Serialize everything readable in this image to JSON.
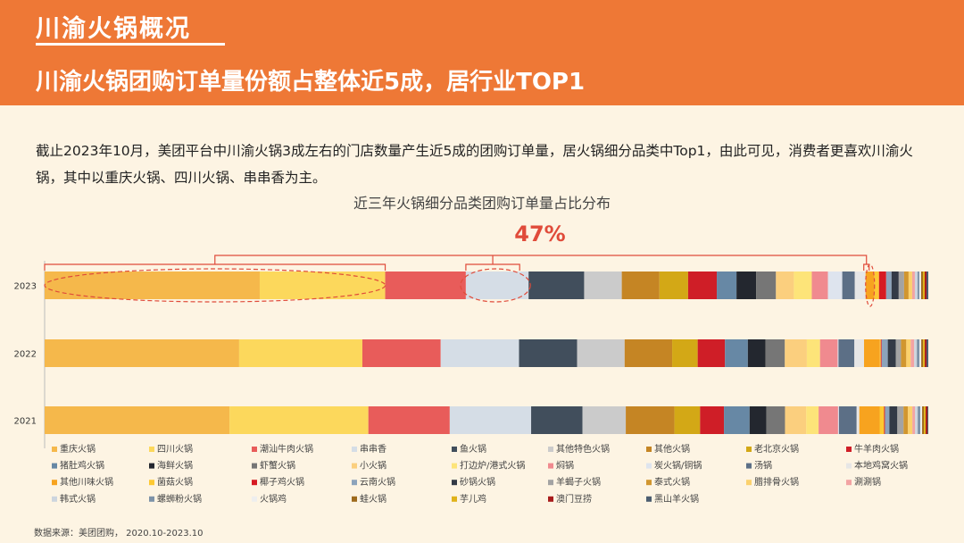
{
  "header": {
    "title": "川渝火锅概况",
    "subtitle": "川渝火锅团购订单量份额占整体近5成，居行业TOP1"
  },
  "description": "截止2023年10月，美团平台中川渝火锅3成左右的门店数量产生近5成的团购订单量，居火锅细分品类中Top1，由此可见，消费者更喜欢川渝火锅，其中以重庆火锅、四川火锅、串串香为主。",
  "source": "数据来源：美团团购， 2020.10-2023.10",
  "chart_data": {
    "type": "bar",
    "orientation": "horizontal",
    "stacked": "100%",
    "title": "近三年火锅细分品类团购订单量占比分布",
    "annotation": "47%",
    "categories": [
      "2023",
      "2022",
      "2021"
    ],
    "series": [
      {
        "name": "重庆火锅",
        "color": "#f5b84b",
        "values": [
          24.0,
          22.1,
          20.9
        ]
      },
      {
        "name": "四川火锅",
        "color": "#fcd85c",
        "values": [
          14.0,
          14.0,
          15.7
        ]
      },
      {
        "name": "潮汕牛肉火锅",
        "color": "#e85c5a",
        "values": [
          9.0,
          8.9,
          9.2
        ]
      },
      {
        "name": "串串香",
        "color": "#d5dde6",
        "values": [
          7.0,
          8.9,
          9.2
        ]
      },
      {
        "name": "鱼火锅",
        "color": "#414e5c",
        "values": [
          6.2,
          6.6,
          5.8
        ]
      },
      {
        "name": "其他特色火锅",
        "color": "#cbcbcb",
        "values": [
          4.2,
          5.4,
          4.9
        ]
      },
      {
        "name": "其他火锅",
        "color": "#c58524",
        "values": [
          4.2,
          5.4,
          5.5
        ]
      },
      {
        "name": "老北京火锅",
        "color": "#d3a816",
        "values": [
          3.2,
          2.9,
          2.9
        ]
      },
      {
        "name": "牛羊肉火锅",
        "color": "#cf1e27",
        "values": [
          3.2,
          3.1,
          2.7
        ]
      },
      {
        "name": "猪肚鸡火锅",
        "color": "#6788a5",
        "values": [
          2.2,
          2.6,
          2.9
        ]
      },
      {
        "name": "海鲜火锅",
        "color": "#23272f",
        "values": [
          2.2,
          2.0,
          1.9
        ]
      },
      {
        "name": "虾蟹火锅",
        "color": "#767676",
        "values": [
          2.2,
          2.2,
          2.1
        ]
      },
      {
        "name": "小火锅",
        "color": "#fbcf7e",
        "values": [
          2.0,
          2.5,
          2.4
        ]
      },
      {
        "name": "打边炉/港式火锅",
        "color": "#fde479",
        "values": [
          2.0,
          1.5,
          1.4
        ]
      },
      {
        "name": "焖锅",
        "color": "#f08a8f",
        "values": [
          1.8,
          2.0,
          2.2
        ]
      },
      {
        "name": "炭火锅/铜锅",
        "color": "#dee4ee",
        "values": [
          1.6,
          0.1,
          0.1
        ]
      },
      {
        "name": "汤锅",
        "color": "#5c6f86",
        "values": [
          1.4,
          1.8,
          2.0
        ]
      },
      {
        "name": "本地鸡窝火锅",
        "color": "#e6e6e6",
        "values": [
          1.2,
          1.1,
          0.3
        ]
      },
      {
        "name": "其他川味火锅",
        "color": "#f7a31f",
        "values": [
          1.0,
          1.8,
          2.3
        ]
      },
      {
        "name": "菌菇火锅",
        "color": "#fdc933",
        "values": [
          0.5,
          0.1,
          0.5
        ]
      },
      {
        "name": "椰子鸡火锅",
        "color": "#d61a22",
        "values": [
          0.8,
          0.1,
          0.1
        ]
      },
      {
        "name": "云南火锅",
        "color": "#8ca3bb",
        "values": [
          0.6,
          0.7,
          0.5
        ]
      },
      {
        "name": "砂锅火锅",
        "color": "#333a46",
        "values": [
          0.8,
          0.9,
          0.9
        ]
      },
      {
        "name": "羊蝎子火锅",
        "color": "#a3a3a3",
        "values": [
          0.6,
          0.6,
          0.7
        ]
      },
      {
        "name": "泰式火锅",
        "color": "#d1962f",
        "values": [
          0.5,
          0.6,
          0.5
        ]
      },
      {
        "name": "腊排骨火锅",
        "color": "#fbd16d",
        "values": [
          0.4,
          0.5,
          0.5
        ]
      },
      {
        "name": "涮涮锅",
        "color": "#f3a3a3",
        "values": [
          0.3,
          0.4,
          0.3
        ]
      },
      {
        "name": "韩式火锅",
        "color": "#cdd5de",
        "values": [
          0.3,
          0.3,
          0.3
        ]
      },
      {
        "name": "螺蛳粉火锅",
        "color": "#7d92a8",
        "values": [
          0.2,
          0.3,
          0.3
        ]
      },
      {
        "name": "火锅鸡",
        "color": "#eeeeee",
        "values": [
          0.2,
          0.2,
          0.2
        ]
      },
      {
        "name": "蛙火锅",
        "color": "#9e6a1d",
        "values": [
          0.2,
          0.2,
          0.2
        ]
      },
      {
        "name": "芋儿鸡",
        "color": "#e0b21a",
        "values": [
          0.2,
          0.2,
          0.2
        ]
      },
      {
        "name": "澳门豆捞",
        "color": "#a81c1c",
        "values": [
          0.2,
          0.2,
          0.2
        ]
      },
      {
        "name": "黑山羊火锅",
        "color": "#4c5d70",
        "values": [
          0.2,
          0.2,
          0.1
        ]
      }
    ],
    "legend_position": "bottom",
    "grid": false
  }
}
